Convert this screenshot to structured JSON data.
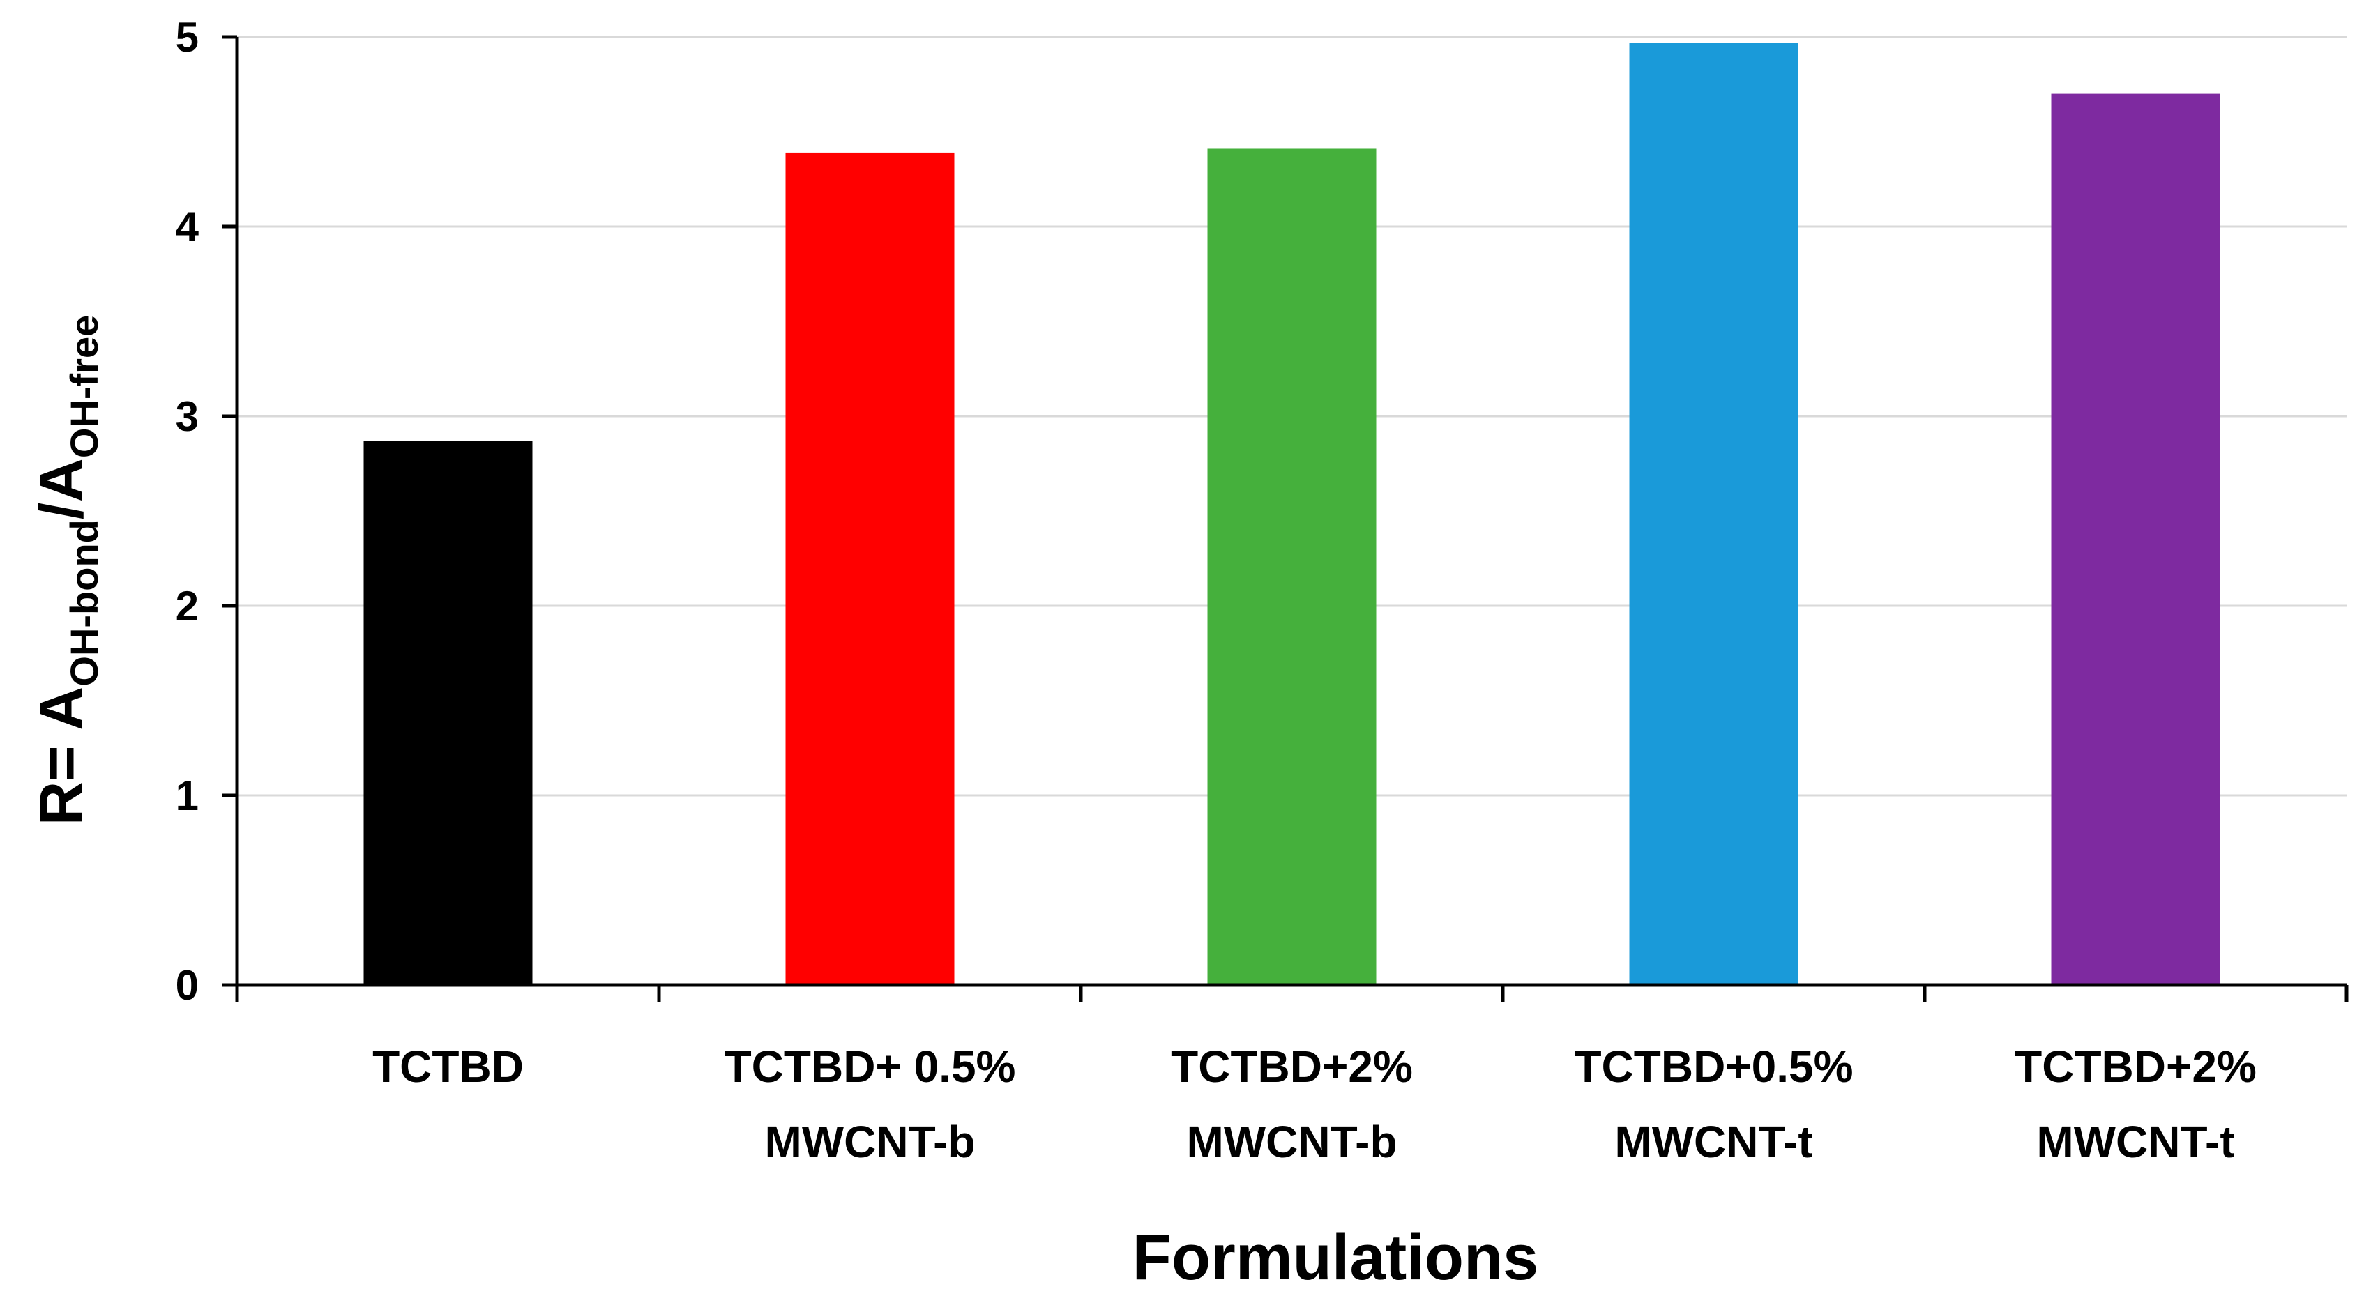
{
  "chart_data": {
    "type": "bar",
    "title": "",
    "categories": [
      [
        "TCTBD"
      ],
      [
        "TCTBD+ 0.5%",
        "MWCNT-b"
      ],
      [
        "TCTBD+2%",
        "MWCNT-b"
      ],
      [
        "TCTBD+0.5%",
        "MWCNT-t"
      ],
      [
        "TCTBD+2%",
        "MWCNT-t"
      ]
    ],
    "values": [
      2.87,
      4.39,
      4.41,
      4.97,
      4.7
    ],
    "colors": [
      "#000000",
      "#ff0000",
      "#45b03c",
      "#1a9ad9",
      "#7e2aa0"
    ],
    "xlabel": "Formulations",
    "ylabel": {
      "prefix": "R= A",
      "sub1": "OH-bond",
      "middle": "/A",
      "sub2": "OH-free"
    },
    "ylim": [
      0,
      5
    ],
    "yticks": [
      "0",
      "1",
      "2",
      "3",
      "4",
      "5"
    ],
    "grid": true
  }
}
